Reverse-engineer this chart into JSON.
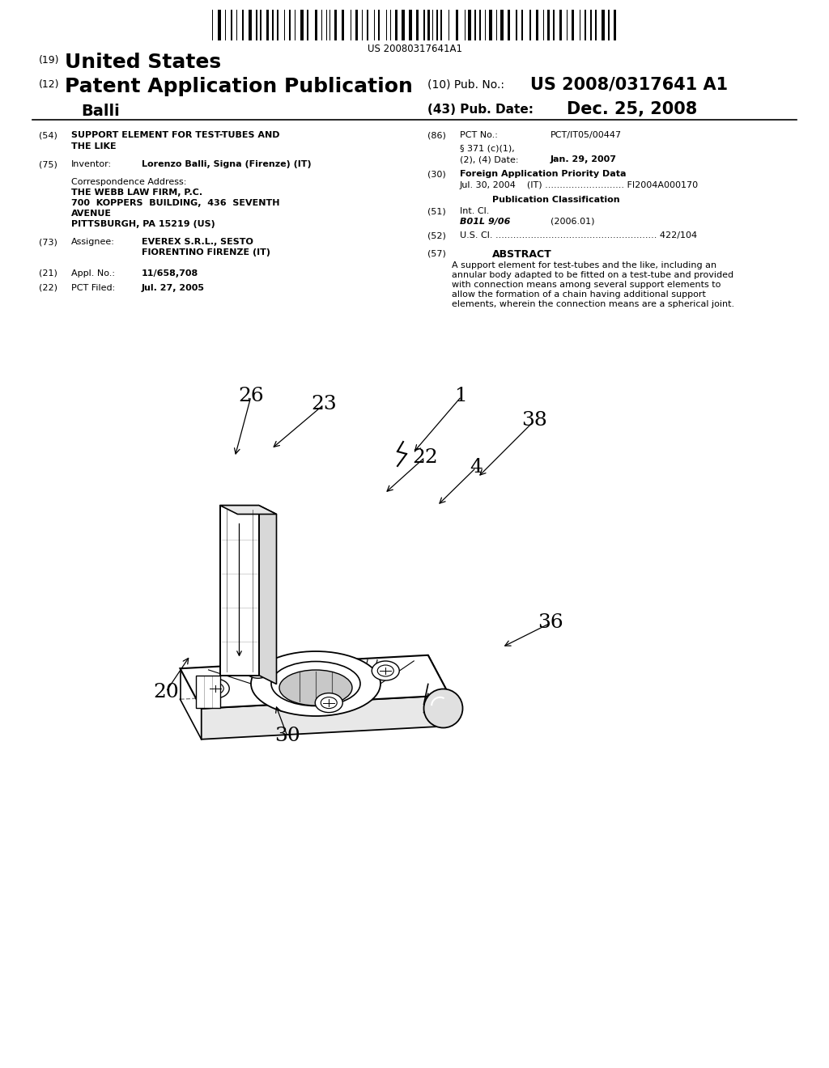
{
  "bg_color": "#ffffff",
  "page_width": 10.24,
  "page_height": 13.2,
  "barcode_text": "US 20080317641A1",
  "h1_num": "(19)",
  "h1_text": "United States",
  "h2_num": "(12)",
  "h2_text": "Patent Application Publication",
  "h3_text": "Balli",
  "hr_pub_label": "(10) Pub. No.:",
  "hr_pub_val": "US 2008/0317641 A1",
  "hr_date_label": "(43) Pub. Date:",
  "hr_date_val": "Dec. 25, 2008",
  "f54_num": "(54)",
  "f54_l1": "SUPPORT ELEMENT FOR TEST-TUBES AND",
  "f54_l2": "THE LIKE",
  "f75_num": "(75)",
  "f75_lbl": "Inventor:",
  "f75_val": "Lorenzo Balli, Signa (Firenze) (IT)",
  "corr_lbl": "Correspondence Address:",
  "corr_l1": "THE WEBB LAW FIRM, P.C.",
  "corr_l2": "700  KOPPERS  BUILDING,  436  SEVENTH",
  "corr_l3": "AVENUE",
  "corr_l4": "PITTSBURGH, PA 15219 (US)",
  "f73_num": "(73)",
  "f73_lbl": "Assignee:",
  "f73_l1": "EVEREX S.R.L., SESTO",
  "f73_l2": "FIORENTINO FIRENZE (IT)",
  "f21_num": "(21)",
  "f21_lbl": "Appl. No.:",
  "f21_val": "11/658,708",
  "f22_num": "(22)",
  "f22_lbl": "PCT Filed:",
  "f22_val": "Jul. 27, 2005",
  "f86_num": "(86)",
  "f86_lbl": "PCT No.:",
  "f86_val": "PCT/IT05/00447",
  "f86b_l1": "§ 371 (c)(1),",
  "f86b_l2": "(2), (4) Date:",
  "f86b_date": "Jan. 29, 2007",
  "f30_num": "(30)",
  "f30_lbl": "Foreign Application Priority Data",
  "f30_val": "Jul. 30, 2004    (IT) ........................... FI2004A000170",
  "pub_cls_lbl": "Publication Classification",
  "f51_num": "(51)",
  "f51_lbl": "Int. Cl.",
  "f51_cls": "B01L 9/06",
  "f51_yr": "(2006.01)",
  "f52_num": "(52)",
  "f52_val": "U.S. Cl. ....................................................... 422/104",
  "f57_num": "(57)",
  "f57_lbl": "ABSTRACT",
  "abstract_lines": [
    "A support element for test-tubes and the like, including an",
    "annular body adapted to be fitted on a test-tube and provided",
    "with connection means among several support elements to",
    "allow the formation of a chain having additional support",
    "elements, wherein the connection means are a spherical joint."
  ]
}
